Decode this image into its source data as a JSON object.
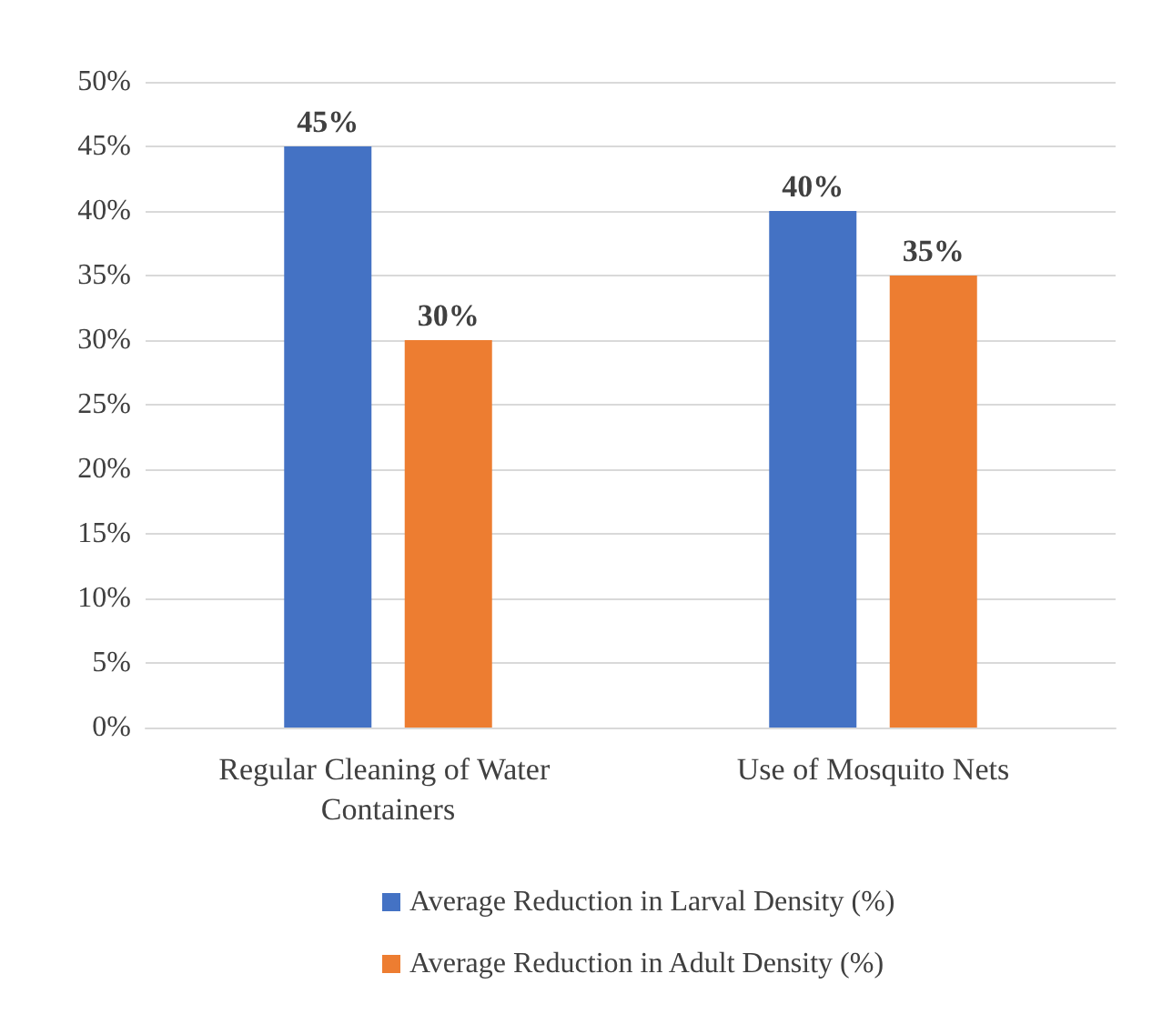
{
  "chart_data": {
    "type": "bar",
    "categories": [
      "Regular Cleaning of Water Containers",
      "Use of Mosquito Nets"
    ],
    "series": [
      {
        "name": "Average Reduction in Larval Density (%)",
        "color": "#4472c4",
        "values": [
          45,
          40
        ],
        "value_labels": [
          "45%",
          "40%"
        ]
      },
      {
        "name": "Average Reduction in Adult Density (%)",
        "color": "#ed7d31",
        "values": [
          30,
          35
        ],
        "value_labels": [
          "30%",
          "35%"
        ]
      }
    ],
    "ylim": [
      0,
      50
    ],
    "yticks": [
      {
        "value": 0,
        "label": "0%"
      },
      {
        "value": 5,
        "label": "5%"
      },
      {
        "value": 10,
        "label": "10%"
      },
      {
        "value": 15,
        "label": "15%"
      },
      {
        "value": 20,
        "label": "20%"
      },
      {
        "value": 25,
        "label": "25%"
      },
      {
        "value": 30,
        "label": "30%"
      },
      {
        "value": 35,
        "label": "35%"
      },
      {
        "value": 40,
        "label": "40%"
      },
      {
        "value": 45,
        "label": "45%"
      },
      {
        "value": 50,
        "label": "50%"
      }
    ],
    "grid": "y",
    "legend": "bottom"
  }
}
